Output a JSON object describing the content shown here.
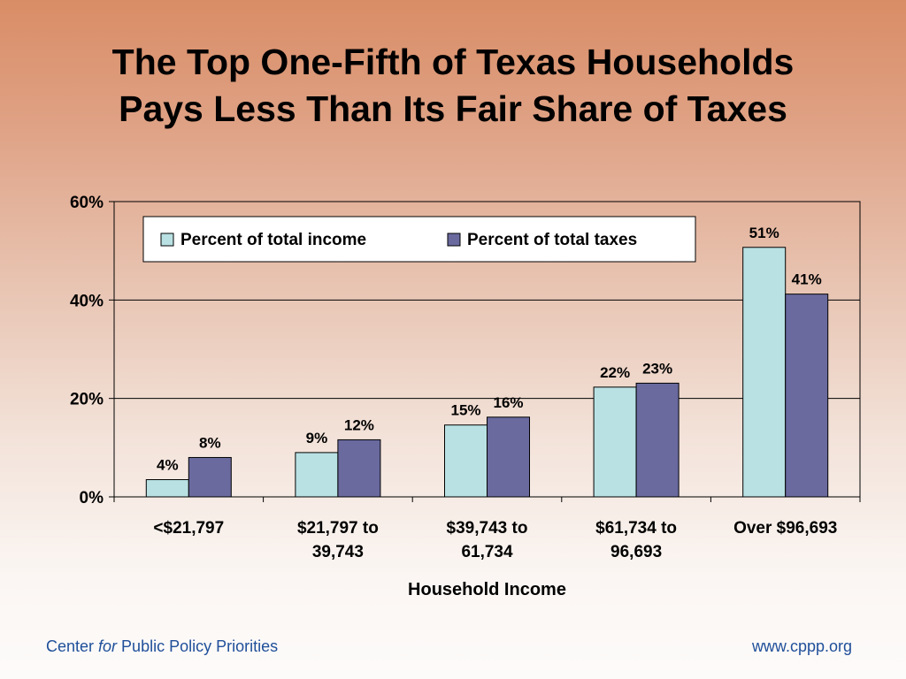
{
  "slide": {
    "title_line1": "The Top One-Fifth of Texas Households",
    "title_line2": "Pays Less Than Its Fair Share of Taxes"
  },
  "footer": {
    "org_part1": "Center ",
    "org_italic": "for",
    "org_part2": " Public Policy Priorities",
    "url": "www.cppp.org"
  },
  "colors": {
    "income": "#b9e1e3",
    "taxes": "#6a6a9f",
    "gridline": "#000000",
    "footer_text": "#1f4f9a"
  },
  "chart_data": {
    "type": "bar",
    "title": "",
    "xlabel": "Household Income",
    "ylabel": "",
    "ylim": [
      0,
      60
    ],
    "yticks": [
      0,
      20,
      40,
      60
    ],
    "ytick_labels": [
      "0%",
      "20%",
      "40%",
      "60%"
    ],
    "grid": true,
    "legend_position": "top-left",
    "categories": [
      [
        "<$21,797"
      ],
      [
        "$21,797 to",
        "39,743"
      ],
      [
        "$39,743 to",
        "61,734"
      ],
      [
        "$61,734 to",
        "96,693"
      ],
      [
        "Over $96,693"
      ]
    ],
    "series": [
      {
        "name": "Percent of total income",
        "values": [
          3.5,
          9,
          14.6,
          22.3,
          50.7
        ],
        "labels": [
          "4%",
          "9%",
          "15%",
          "22%",
          "51%"
        ]
      },
      {
        "name": "Percent of total taxes",
        "values": [
          8,
          11.6,
          16.2,
          23.1,
          41.2
        ],
        "labels": [
          "8%",
          "12%",
          "16%",
          "23%",
          "41%"
        ]
      }
    ]
  }
}
